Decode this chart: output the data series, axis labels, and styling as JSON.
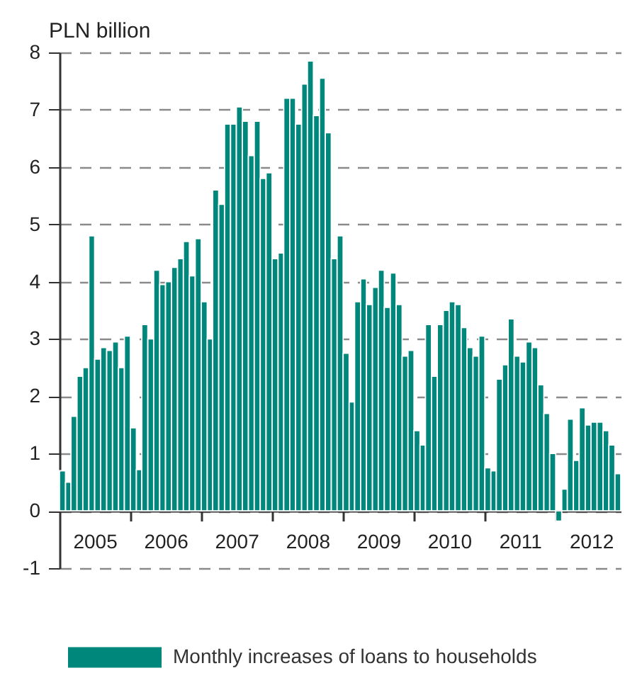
{
  "chart_data": {
    "type": "bar",
    "ylabel": "PLN billion",
    "x": [
      "2005-01",
      "2005-02",
      "2005-03",
      "2005-04",
      "2005-05",
      "2005-06",
      "2005-07",
      "2005-08",
      "2005-09",
      "2005-10",
      "2005-11",
      "2005-12",
      "2006-01",
      "2006-02",
      "2006-03",
      "2006-04",
      "2006-05",
      "2006-06",
      "2006-07",
      "2006-08",
      "2006-09",
      "2006-10",
      "2006-11",
      "2006-12",
      "2007-01",
      "2007-02",
      "2007-03",
      "2007-04",
      "2007-05",
      "2007-06",
      "2007-07",
      "2007-08",
      "2007-09",
      "2007-10",
      "2007-11",
      "2007-12",
      "2008-01",
      "2008-02",
      "2008-03",
      "2008-04",
      "2008-05",
      "2008-06",
      "2008-07",
      "2008-08",
      "2008-09",
      "2008-10",
      "2008-11",
      "2008-12",
      "2009-01",
      "2009-02",
      "2009-03",
      "2009-04",
      "2009-05",
      "2009-06",
      "2009-07",
      "2009-08",
      "2009-09",
      "2009-10",
      "2009-11",
      "2009-12",
      "2010-01",
      "2010-02",
      "2010-03",
      "2010-04",
      "2010-05",
      "2010-06",
      "2010-07",
      "2010-08",
      "2010-09",
      "2010-10",
      "2010-11",
      "2010-12",
      "2011-01",
      "2011-02",
      "2011-03",
      "2011-04",
      "2011-05",
      "2011-06",
      "2011-07",
      "2011-08",
      "2011-09",
      "2011-10",
      "2011-11",
      "2011-12",
      "2012-01",
      "2012-02",
      "2012-03",
      "2012-04",
      "2012-05",
      "2012-06",
      "2012-07",
      "2012-08",
      "2012-09",
      "2012-10",
      "2012-11"
    ],
    "series": [
      {
        "name": "Monthly increases of loans to households",
        "color": "#00877b",
        "values": [
          0.7,
          0.5,
          1.65,
          2.35,
          2.5,
          4.8,
          2.65,
          2.85,
          2.8,
          2.95,
          2.5,
          3.05,
          1.45,
          0.72,
          3.25,
          3.0,
          4.2,
          3.95,
          4.0,
          4.25,
          4.4,
          4.7,
          4.1,
          4.75,
          3.65,
          3.0,
          5.6,
          5.35,
          6.75,
          6.75,
          7.05,
          6.8,
          6.2,
          6.8,
          5.8,
          5.9,
          4.4,
          4.5,
          7.2,
          7.2,
          6.75,
          7.45,
          7.85,
          6.9,
          7.55,
          6.6,
          4.4,
          4.8,
          2.75,
          1.9,
          3.65,
          4.05,
          3.6,
          3.9,
          4.2,
          3.55,
          4.15,
          3.6,
          2.7,
          2.8,
          1.4,
          1.15,
          3.25,
          2.35,
          3.25,
          3.5,
          3.65,
          3.6,
          3.2,
          2.85,
          2.7,
          3.05,
          0.75,
          0.7,
          2.3,
          2.55,
          3.35,
          2.7,
          2.6,
          2.95,
          2.85,
          2.2,
          1.7,
          1.0,
          -0.18,
          0.38,
          1.6,
          0.88,
          1.8,
          1.5,
          1.55,
          1.55,
          1.4,
          1.15,
          0.65
        ]
      }
    ],
    "xlim": [
      "2005-01",
      "2012-12"
    ],
    "xticks": [
      {
        "value": "2006-01",
        "label": null
      },
      {
        "value": "2007-01",
        "label": null
      },
      {
        "value": "2008-01",
        "label": null
      },
      {
        "value": "2009-01",
        "label": null
      },
      {
        "value": "2010-01",
        "label": null
      },
      {
        "value": "2011-01",
        "label": null
      },
      {
        "value": "2012-01",
        "label": null
      },
      {
        "value": "2005-07",
        "label": "2005"
      },
      {
        "value": "2006-07",
        "label": "2006"
      },
      {
        "value": "2007-07",
        "label": "2007"
      },
      {
        "value": "2008-07",
        "label": "2008"
      },
      {
        "value": "2009-07",
        "label": "2009"
      },
      {
        "value": "2010-07",
        "label": "2010"
      },
      {
        "value": "2011-07",
        "label": "2011"
      },
      {
        "value": "2012-07",
        "label": "2012"
      }
    ],
    "ylim": [
      -1,
      8
    ],
    "yticks": [
      -1,
      0,
      1,
      2,
      3,
      4,
      5,
      6,
      7,
      8
    ],
    "grid": "y",
    "legend": "bottom left"
  }
}
